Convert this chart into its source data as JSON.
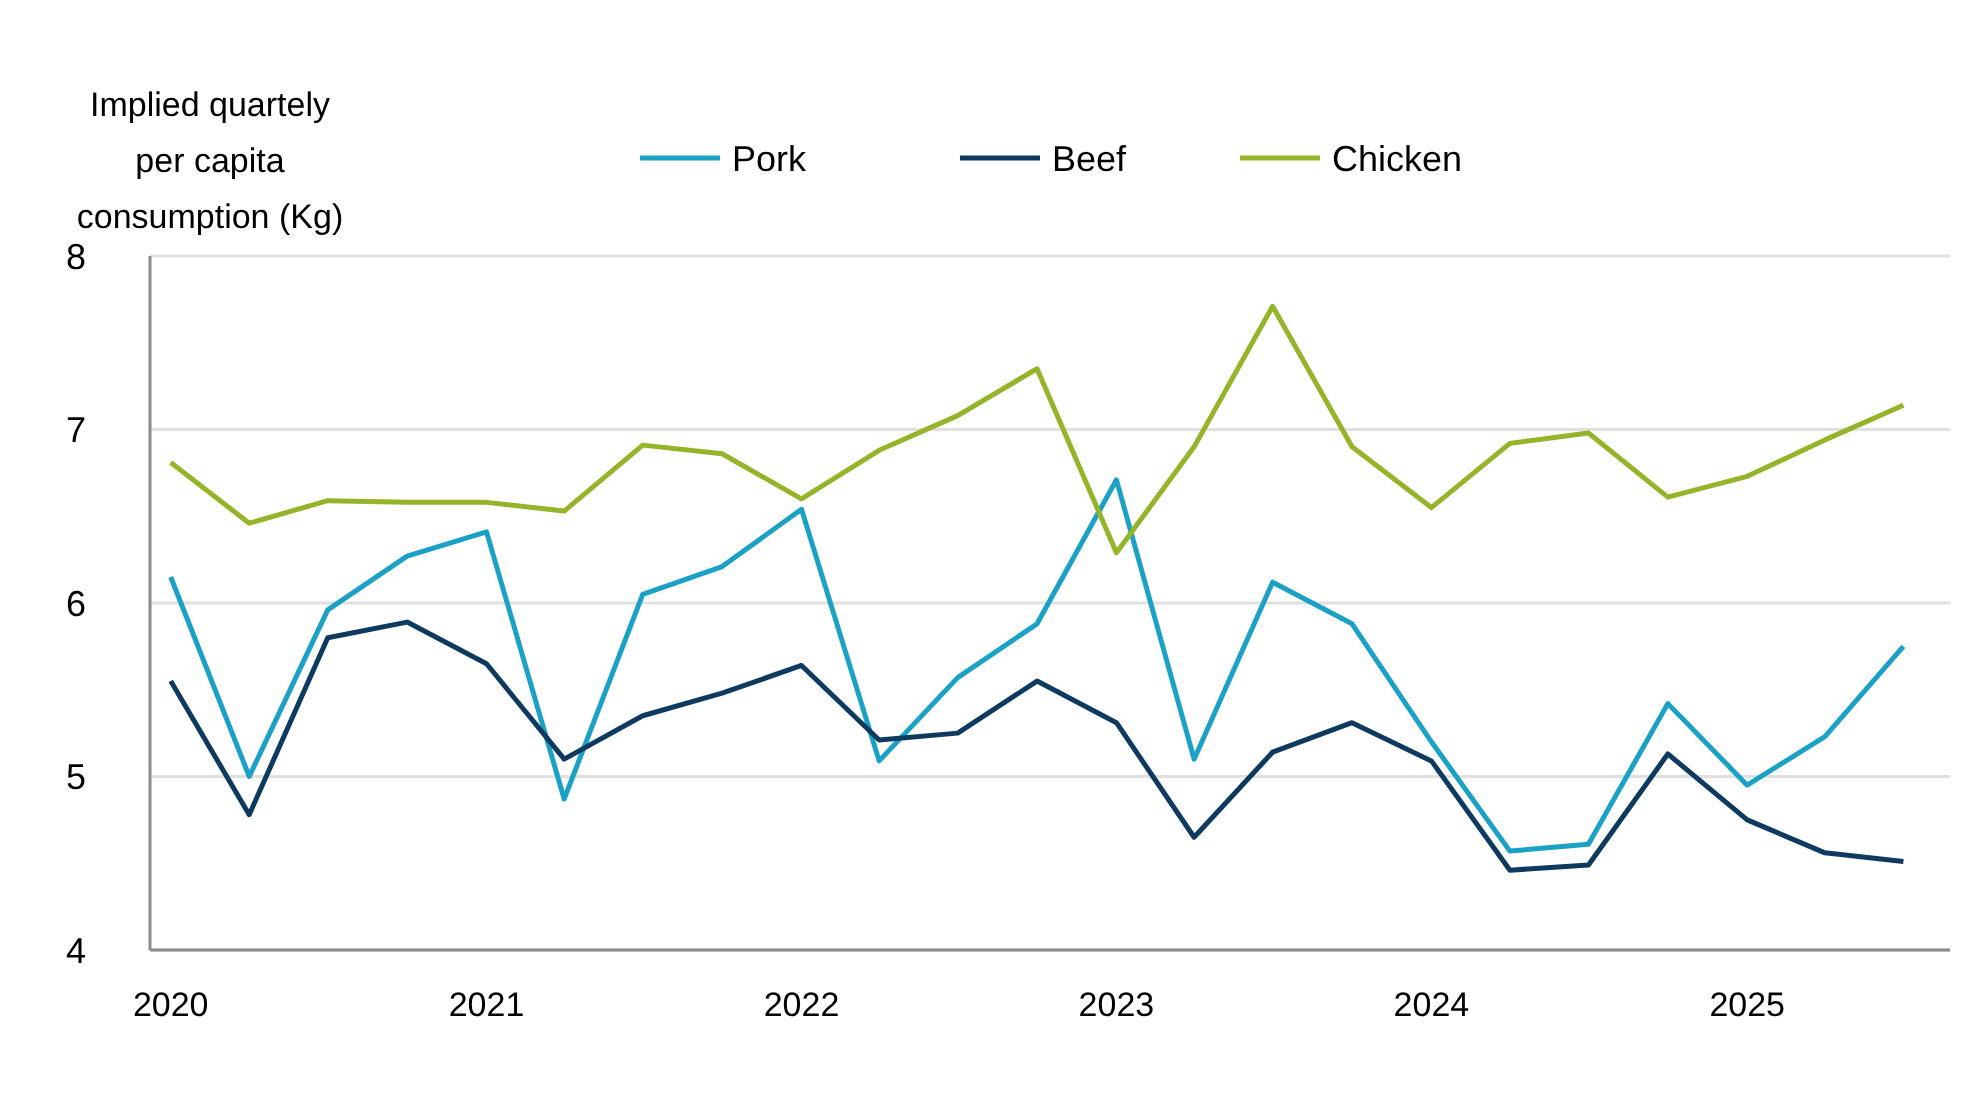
{
  "chart_data": {
    "type": "line",
    "ylabel": "Implied quartely per capita consumption (Kg)",
    "x": [
      "2020-01",
      "2020-04",
      "2020-07",
      "2020-10",
      "2021-01",
      "2021-04",
      "2021-07",
      "2021-10",
      "2022-01",
      "2022-04",
      "2022-07",
      "2022-10",
      "2023-01",
      "2023-04",
      "2023-07",
      "2023-10",
      "2024-01",
      "2024-04",
      "2024-07",
      "2024-10",
      "2025-01",
      "2025-04",
      "2025-07"
    ],
    "series": [
      {
        "name": "Pork",
        "color": "#1ba1c6",
        "values": [
          6.15,
          5.0,
          5.96,
          6.27,
          6.41,
          4.87,
          6.05,
          6.21,
          6.54,
          5.09,
          5.57,
          5.88,
          6.71,
          5.1,
          6.12,
          5.88,
          5.2,
          4.57,
          4.61,
          5.42,
          4.95,
          5.23,
          5.75
        ]
      },
      {
        "name": "Beef",
        "color": "#0e3a5f",
        "values": [
          5.55,
          4.78,
          5.8,
          5.89,
          5.65,
          5.1,
          5.35,
          5.48,
          5.64,
          5.21,
          5.25,
          5.55,
          5.31,
          4.65,
          5.14,
          5.31,
          5.09,
          4.46,
          4.49,
          5.13,
          4.75,
          4.56,
          4.51
        ]
      },
      {
        "name": "Chicken",
        "color": "#96b42a",
        "values": [
          6.81,
          6.46,
          6.59,
          6.58,
          6.58,
          6.53,
          6.91,
          6.86,
          6.6,
          6.88,
          7.08,
          7.35,
          6.29,
          6.9,
          7.71,
          6.9,
          6.55,
          6.92,
          6.98,
          6.61,
          6.73,
          6.94,
          7.14
        ]
      }
    ],
    "xlim": [
      "2019-12-08",
      "2025-08-24"
    ],
    "xticks": [
      "2020",
      "2021",
      "2022",
      "2023",
      "2024",
      "2025"
    ],
    "ylim": [
      4,
      8
    ],
    "yticks": [
      4,
      5,
      6,
      7,
      8
    ],
    "grid": "y",
    "legend": "top",
    "line_style": "solid",
    "marker": "none"
  }
}
